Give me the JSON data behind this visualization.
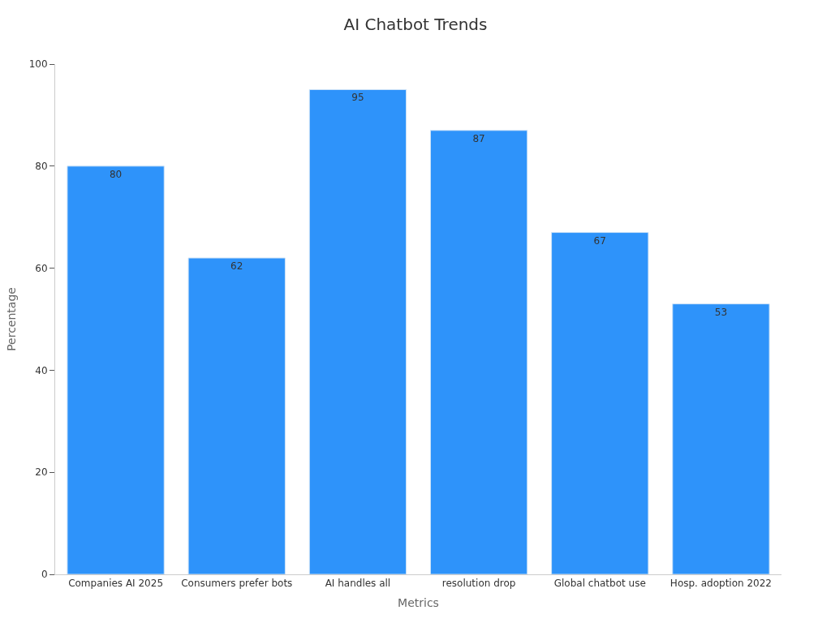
{
  "chart_data": {
    "type": "bar",
    "title": "AI Chatbot Trends",
    "xlabel": "Metrics",
    "ylabel": "Percentage",
    "categories": [
      "Companies AI 2025",
      "Consumers prefer bots",
      "AI handles all",
      "resolution drop",
      "Global chatbot use",
      "Hosp. adoption 2022"
    ],
    "values": [
      80,
      62,
      95,
      87,
      67,
      53
    ],
    "color": "#2e93fa",
    "data_labels": true,
    "ylim": [
      0,
      100
    ],
    "yticks": [
      0,
      20,
      40,
      60,
      80,
      100
    ],
    "grid": false,
    "legend": false
  }
}
